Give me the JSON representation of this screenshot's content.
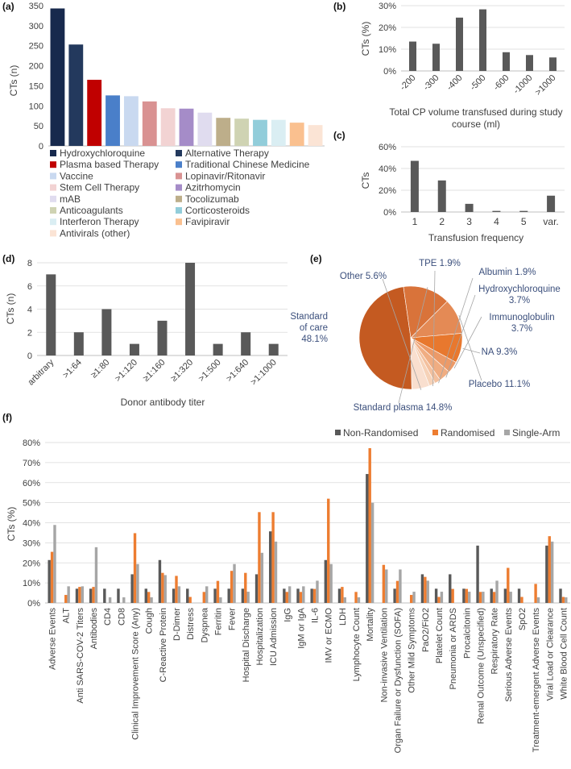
{
  "colors": {
    "gray_bar": "#595959",
    "orange": "#ed7d31",
    "light_gray": "#a6a6a6",
    "pie_label": "#3b4f7c"
  },
  "chart_data": [
    {
      "panel": "(a)",
      "type": "bar",
      "ylabel": "CTs (n)",
      "ylim": [
        0,
        350
      ],
      "yticks": [
        0,
        50,
        100,
        150,
        200,
        250,
        300,
        350
      ],
      "categories": [
        "Hydroxychloroquine",
        "Alternative Therapy",
        "Plasma based Therapy",
        "Traditional Chinese Medicine",
        "Vaccine",
        "Lopinavir/Ritonavir",
        "Stem Cell Therapy",
        "Azitrhomycin",
        "mAB",
        "Tocolizumab",
        "Anticoagulants",
        "Corticosteroids",
        "Interferon Therapy",
        "Favipiravir",
        "Antivirals (other)"
      ],
      "values": [
        343,
        253,
        165,
        126,
        124,
        111,
        94,
        93,
        83,
        70,
        68,
        65,
        65,
        58,
        52
      ],
      "colors": [
        "#17294d",
        "#23395d",
        "#c00000",
        "#4a7fc9",
        "#c9d9f0",
        "#d99292",
        "#f2d3d3",
        "#a58cc8",
        "#e0dcef",
        "#bdae8a",
        "#cfd3b3",
        "#92cdda",
        "#daeef3",
        "#fac08f",
        "#fbe4d5"
      ],
      "legend": "below"
    },
    {
      "panel": "(b)",
      "type": "bar",
      "xlabel": "Total CP volume transfused during study course (ml)",
      "ylabel": "CTs (%)",
      "ylim": [
        0,
        30
      ],
      "yticks": [
        "0%",
        "10%",
        "20%",
        "30%"
      ],
      "categories": [
        "-200",
        "-300",
        "-400",
        "-500",
        "-600",
        "-1000",
        ">1000"
      ],
      "values": [
        13.5,
        12.5,
        24.5,
        28.3,
        8.6,
        7.3,
        6.2
      ]
    },
    {
      "panel": "(c)",
      "type": "bar",
      "xlabel": "Transfusion frequency",
      "ylabel": "CTs",
      "ylim": [
        0,
        60
      ],
      "yticks": [
        "0%",
        "20%",
        "40%",
        "60%"
      ],
      "categories": [
        "1",
        "2",
        "3",
        "4",
        "5",
        "var."
      ],
      "values": [
        47,
        29,
        7.5,
        1,
        1,
        15
      ]
    },
    {
      "panel": "(d)",
      "type": "bar",
      "xlabel": "Donor antibody titer",
      "ylabel": "CTs (n)",
      "ylim": [
        0,
        8
      ],
      "yticks": [
        0,
        2,
        4,
        6,
        8
      ],
      "categories": [
        "arbitrary",
        ">1:64",
        "≥1:80",
        ">1:120",
        "≥1:160",
        "≥1:320",
        ">1:500",
        ">1:640",
        ">1:1000"
      ],
      "values": [
        7,
        2,
        4,
        1,
        3,
        8,
        1,
        2,
        1
      ]
    },
    {
      "panel": "(e)",
      "type": "pie",
      "slices": [
        {
          "label": "Standard of care",
          "percent": "48.1%",
          "value": 48.1,
          "color": "#c45a21"
        },
        {
          "label": "Standard plasma",
          "percent": "14.8%",
          "value": 14.8,
          "color": "#d9733a"
        },
        {
          "label": "Placebo",
          "percent": "11.1%",
          "value": 11.1,
          "color": "#e48a55"
        },
        {
          "label": "NA",
          "percent": "9.3%",
          "value": 9.3,
          "color": "#e8782e"
        },
        {
          "label": "Immunoglobulin",
          "percent": "3.7%",
          "value": 3.7,
          "color": "#ec9a68"
        },
        {
          "label": "Hydroxychloroquine",
          "percent": "3.7%",
          "value": 3.7,
          "color": "#f0ad82"
        },
        {
          "label": "Albumin",
          "percent": "1.9%",
          "value": 1.9,
          "color": "#f3c09e"
        },
        {
          "label": "TPE",
          "percent": "1.9%",
          "value": 1.9,
          "color": "#f6d2b8"
        },
        {
          "label": "Other",
          "percent": "5.6%",
          "value": 5.6,
          "color": "#f9dfcf"
        }
      ]
    },
    {
      "panel": "(f)",
      "type": "bar",
      "ylabel": "CTs (%)",
      "ylim": [
        0,
        80
      ],
      "yticks": [
        "0%",
        "10%",
        "20%",
        "30%",
        "40%",
        "50%",
        "60%",
        "70%",
        "80%"
      ],
      "categories": [
        "Adverse Events",
        "ALT",
        "Anti SARS-COV-2 Titers",
        "Antibodies",
        "CD4",
        "CD8",
        "Clinical Improvement Score (Any)",
        "Cough",
        "C-Reactive Protein",
        "D-Dimer",
        "Distress",
        "Dyspnea",
        "Ferritin",
        "Fever",
        "Hospital Discharge",
        "Hospitalization",
        "ICU Admission",
        "IgG",
        "IgM or IgA",
        "IL-6",
        "IMV or ECMO",
        "LDH",
        "Lymphocyte Count",
        "Mortality",
        "Non-invasive Ventilation",
        "Organ Failure or Dysfunction (SOFA)",
        "Other Mild Symptoms",
        "PaO2/FiO2",
        "Platelet Count",
        "Pneumonia or ARDS",
        "Procalcitonin",
        "Renal Outcome (Unspecified)",
        "Respiratory Rate",
        "Serious Adverse Events",
        "SpO2",
        "Treatment-emergent Adverse Events",
        "Viral Load or Clearance",
        "White Blood Cell Count"
      ],
      "series": [
        {
          "name": "Non-Randomised",
          "color": "#595959",
          "values": [
            21.4,
            0,
            7.1,
            7.1,
            7.1,
            7.1,
            14.3,
            7.1,
            21.4,
            7.1,
            7.1,
            0,
            7.1,
            7.1,
            7.1,
            14.3,
            35.7,
            7.1,
            7.1,
            7.1,
            21.4,
            7.1,
            0,
            64.3,
            0,
            7.1,
            0,
            14.3,
            7.1,
            14.3,
            7.1,
            28.6,
            7.1,
            7.1,
            7.1,
            0,
            28.6,
            7.1
          ]
        },
        {
          "name": "Randomised",
          "color": "#ed7d31",
          "values": [
            25.5,
            4,
            8,
            8,
            0,
            0,
            34.8,
            5.5,
            15,
            13.5,
            3,
            5.5,
            11,
            16,
            15,
            45.3,
            45.3,
            5.5,
            5.5,
            7,
            52,
            8,
            5.5,
            77.2,
            19,
            11,
            4,
            13,
            3,
            7,
            7,
            5.5,
            5.5,
            17.5,
            3,
            9.5,
            33.3,
            3
          ]
        },
        {
          "name": "Single-Arm",
          "color": "#a6a6a6",
          "values": [
            38.9,
            8.3,
            8.3,
            27.8,
            2.8,
            2.8,
            19.4,
            2.8,
            13.9,
            8.3,
            0,
            8.3,
            2.8,
            19.4,
            5.6,
            25,
            30.6,
            8.3,
            8.3,
            11.1,
            19.4,
            2.8,
            2.8,
            50,
            16.7,
            16.7,
            5.6,
            11.1,
            5.6,
            0,
            5.6,
            5.6,
            11.1,
            5.6,
            0,
            2.8,
            30.6,
            2.8
          ]
        }
      ]
    }
  ]
}
